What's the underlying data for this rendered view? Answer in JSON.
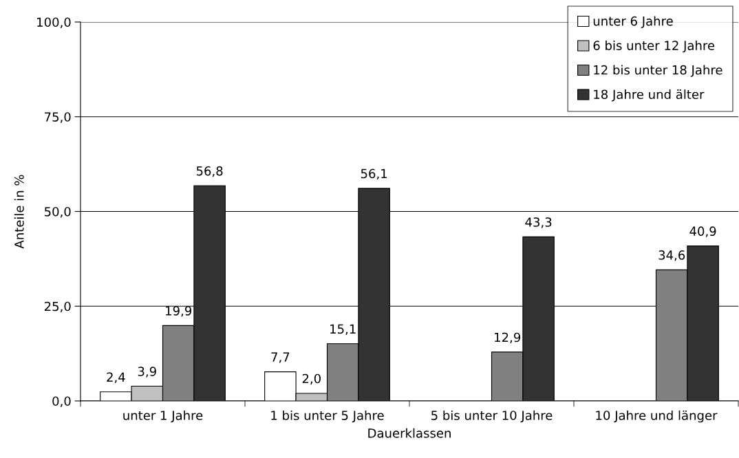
{
  "chart_data": {
    "type": "bar",
    "xlabel": "Dauerklassen",
    "ylabel": "Anteile in %",
    "categories": [
      "unter 1 Jahre",
      "1 bis unter 5 Jahre",
      "5 bis unter 10 Jahre",
      "10 Jahre und länger"
    ],
    "series": [
      {
        "name": "unter 6 Jahre",
        "color": "#ffffff",
        "values": [
          2.4,
          7.7,
          null,
          null
        ],
        "value_labels": [
          "2,4",
          "7,7",
          null,
          null
        ]
      },
      {
        "name": "6 bis unter 12 Jahre",
        "color": "#c0c0c0",
        "values": [
          3.9,
          2.0,
          null,
          null
        ],
        "value_labels": [
          "3,9",
          "2,0",
          null,
          null
        ]
      },
      {
        "name": "12 bis unter 18 Jahre",
        "color": "#808080",
        "values": [
          19.9,
          15.1,
          12.9,
          34.6
        ],
        "value_labels": [
          "19,9",
          "15,1",
          "12,9",
          "34,6"
        ]
      },
      {
        "name": "18 Jahre und älter",
        "color": "#333333",
        "values": [
          56.8,
          56.1,
          43.3,
          40.9
        ],
        "value_labels": [
          "56,8",
          "56,1",
          "43,3",
          "40,9"
        ]
      }
    ],
    "ylim": [
      0,
      100
    ],
    "yticks": [
      {
        "value": 0,
        "label": "0,0"
      },
      {
        "value": 25,
        "label": "25,0"
      },
      {
        "value": 50,
        "label": "50,0"
      },
      {
        "value": 75,
        "label": "75,0"
      },
      {
        "value": 100,
        "label": "100,0"
      }
    ],
    "grid": "y",
    "legend": "top right"
  }
}
